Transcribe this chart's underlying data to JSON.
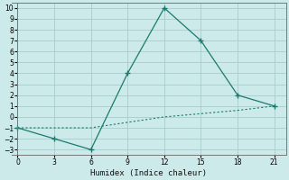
{
  "xlabel": "Humidex (Indice chaleur)",
  "line1_x": [
    0,
    3,
    6,
    9,
    12,
    15,
    18,
    21
  ],
  "line1_y": [
    -1,
    -2,
    -3,
    4,
    10,
    7,
    2,
    1
  ],
  "line2_x": [
    0,
    3,
    6,
    9,
    12,
    15,
    18,
    21
  ],
  "line2_y": [
    -1,
    -1,
    -1,
    -0.5,
    0,
    0.3,
    0.6,
    1
  ],
  "line_color": "#1a7a6e",
  "bg_color": "#cceaea",
  "grid_color": "#aacccc",
  "xlim": [
    -0.5,
    22
  ],
  "ylim": [
    -3.5,
    10.5
  ],
  "xticks": [
    0,
    3,
    6,
    9,
    12,
    15,
    18,
    21
  ],
  "yticks": [
    -3,
    -2,
    -1,
    0,
    1,
    2,
    3,
    4,
    5,
    6,
    7,
    8,
    9,
    10
  ]
}
